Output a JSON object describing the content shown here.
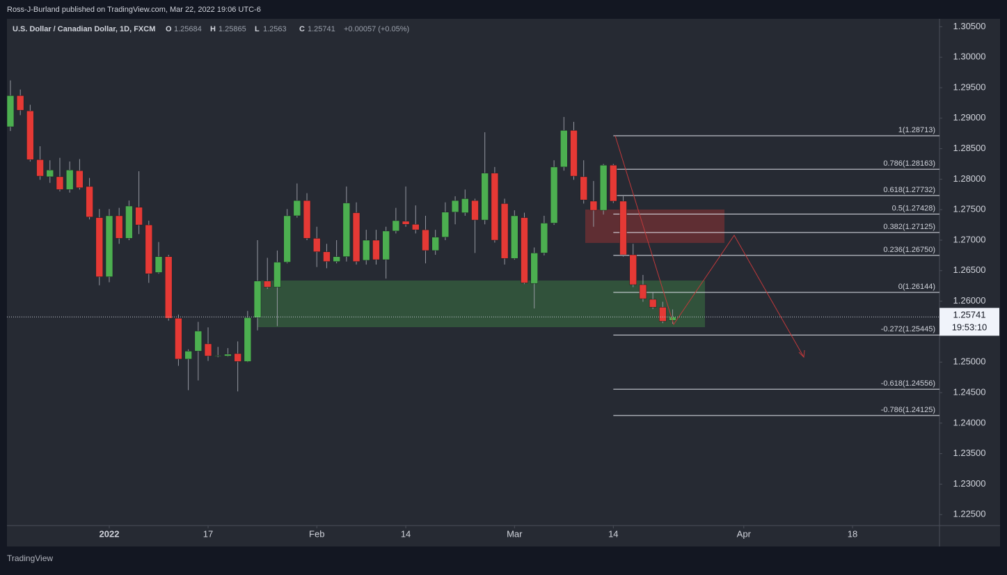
{
  "attribution": "Ross-J-Burland published on TradingView.com, Mar 22, 2022 19:06 UTC-6",
  "footer": {
    "logo": "TradingView"
  },
  "chart_data": {
    "type": "candlestick",
    "title": "U.S. Dollar / Canadian Dollar, 1D, FXCM",
    "ohlc_labels": [
      "O",
      "H",
      "L",
      "C"
    ],
    "change": "+0.00057 (+0.05%)",
    "countdown": "19:53:10",
    "up_color": "#4caf50",
    "down_color": "#e53935",
    "open": [
      1.2886,
      1.2937,
      1.2912,
      1.2832,
      1.2804,
      1.2804,
      1.2783,
      1.2814,
      1.2788,
      1.2737,
      1.264,
      1.274,
      1.2703,
      1.2754,
      1.2725,
      1.2647,
      1.2673,
      1.2572,
      1.2505,
      1.2518,
      1.253,
      1.251,
      1.251,
      1.2514,
      1.2501,
      1.2573,
      1.2633,
      1.2623,
      1.2664,
      1.274,
      1.2765,
      1.2703,
      1.2681,
      1.2665,
      1.2673,
      1.2745,
      1.2667,
      1.27,
      1.2668,
      1.2715,
      1.2731,
      1.2726,
      1.2717,
      1.2683,
      1.2705,
      1.2746,
      1.2745,
      1.2765,
      1.2733,
      1.281,
      1.276,
      1.267,
      1.2737,
      1.2629,
      1.2679,
      1.2728,
      1.282,
      1.288,
      1.2804,
      1.2764,
      1.2749,
      1.2823,
      1.2764,
      1.2676,
      1.2627,
      1.2603,
      1.259,
      1.25684
    ],
    "high": [
      1.2962,
      1.2947,
      1.2922,
      1.2854,
      1.2831,
      1.2835,
      1.2829,
      1.2833,
      1.2802,
      1.2751,
      1.2751,
      1.2753,
      1.2765,
      1.2813,
      1.2732,
      1.2697,
      1.2676,
      1.2578,
      1.2521,
      1.2566,
      1.2557,
      1.2525,
      1.2523,
      1.2534,
      1.2584,
      1.27,
      1.2671,
      1.2683,
      1.2751,
      1.2793,
      1.2777,
      1.2722,
      1.2694,
      1.27,
      1.2788,
      1.2762,
      1.2717,
      1.2717,
      1.2722,
      1.2753,
      1.2788,
      1.2757,
      1.274,
      1.2717,
      1.2762,
      1.2772,
      1.2783,
      1.2768,
      1.2877,
      1.282,
      1.2768,
      1.2749,
      1.2745,
      1.2688,
      1.274,
      1.2831,
      1.2902,
      1.2894,
      1.2831,
      1.2797,
      1.2825,
      1.2825,
      1.2772,
      1.2694,
      1.2643,
      1.2614,
      1.2599,
      1.25865
    ],
    "low": [
      1.2879,
      1.2905,
      1.2829,
      1.2799,
      1.2794,
      1.278,
      1.2778,
      1.2783,
      1.2734,
      1.2626,
      1.2631,
      1.2694,
      1.27,
      1.271,
      1.263,
      1.2645,
      1.2568,
      1.2494,
      1.2454,
      1.247,
      1.2502,
      1.2508,
      1.2509,
      1.2452,
      1.25,
      1.2552,
      1.262,
      1.2559,
      1.2662,
      1.2737,
      1.27,
      1.2656,
      1.2654,
      1.2662,
      1.2665,
      1.266,
      1.266,
      1.266,
      1.2637,
      1.2711,
      1.2722,
      1.2711,
      1.2662,
      1.2676,
      1.27,
      1.2726,
      1.274,
      1.2679,
      1.2726,
      1.2696,
      1.266,
      1.2668,
      1.2628,
      1.2588,
      1.2675,
      1.2725,
      1.2814,
      1.2799,
      1.276,
      1.2722,
      1.2742,
      1.2761,
      1.2673,
      1.2623,
      1.2599,
      1.2587,
      1.2564,
      1.2563
    ],
    "close": [
      1.2937,
      1.2913,
      1.2832,
      1.2805,
      1.2815,
      1.2783,
      1.2815,
      1.2786,
      1.2738,
      1.264,
      1.274,
      1.2703,
      1.2756,
      1.2725,
      1.2645,
      1.2673,
      1.2572,
      1.2505,
      1.2518,
      1.2551,
      1.251,
      1.2511,
      1.2513,
      1.2501,
      1.2573,
      1.2633,
      1.2623,
      1.2664,
      1.274,
      1.2765,
      1.2703,
      1.2681,
      1.2665,
      1.2673,
      1.2761,
      1.2665,
      1.27,
      1.2668,
      1.2715,
      1.2732,
      1.2726,
      1.2717,
      1.2683,
      1.2705,
      1.2746,
      1.2765,
      1.2768,
      1.2733,
      1.281,
      1.27,
      1.267,
      1.274,
      1.263,
      1.2679,
      1.2728,
      1.282,
      1.288,
      1.2805,
      1.2766,
      1.2749,
      1.2823,
      1.2764,
      1.2676,
      1.2627,
      1.2604,
      1.259,
      1.2567,
      1.25741
    ],
    "xlim": [
      -0.35,
      94
    ],
    "xticks": [
      {
        "value": 10,
        "label": "2022"
      },
      {
        "value": 20,
        "label": "17"
      },
      {
        "value": 31,
        "label": "Feb"
      },
      {
        "value": 40,
        "label": "14"
      },
      {
        "value": 51,
        "label": "Mar"
      },
      {
        "value": 61,
        "label": "14"
      },
      {
        "value": 74.2,
        "label": "Apr"
      },
      {
        "value": 85.2,
        "label": "18"
      }
    ],
    "ylim": [
      1.2232,
      1.3063
    ],
    "yticks": [
      {
        "value": 1.305,
        "label": "1.30500"
      },
      {
        "value": 1.3,
        "label": "1.30000"
      },
      {
        "value": 1.295,
        "label": "1.29500"
      },
      {
        "value": 1.29,
        "label": "1.29000"
      },
      {
        "value": 1.285,
        "label": "1.28500"
      },
      {
        "value": 1.28,
        "label": "1.28000"
      },
      {
        "value": 1.275,
        "label": "1.27500"
      },
      {
        "value": 1.27,
        "label": "1.27000"
      },
      {
        "value": 1.265,
        "label": "1.26500"
      },
      {
        "value": 1.26,
        "label": "1.26000"
      },
      {
        "value": 1.255,
        "label": "1.25500"
      },
      {
        "value": 1.25,
        "label": "1.25000"
      },
      {
        "value": 1.245,
        "label": "1.24500"
      },
      {
        "value": 1.24,
        "label": "1.24000"
      },
      {
        "value": 1.235,
        "label": "1.23500"
      },
      {
        "value": 1.23,
        "label": "1.23000"
      },
      {
        "value": 1.225,
        "label": "1.22500"
      }
    ],
    "grid": false,
    "fib_levels": [
      {
        "label": "1(1.28713)",
        "value": 1.28713
      },
      {
        "label": "0.786(1.28163)",
        "value": 1.28163
      },
      {
        "label": "0.618(1.27732)",
        "value": 1.27732
      },
      {
        "label": "0.5(1.27428)",
        "value": 1.27428
      },
      {
        "label": "0.382(1.27125)",
        "value": 1.27125
      },
      {
        "label": "0.236(1.26750)",
        "value": 1.2675
      },
      {
        "label": "0(1.26144)",
        "value": 1.26144
      },
      {
        "label": "-0.272(1.25445)",
        "value": 1.25445
      },
      {
        "label": "-0.618(1.24556)",
        "value": 1.24556
      },
      {
        "label": "-0.786(1.24125)",
        "value": 1.24125
      }
    ]
  }
}
